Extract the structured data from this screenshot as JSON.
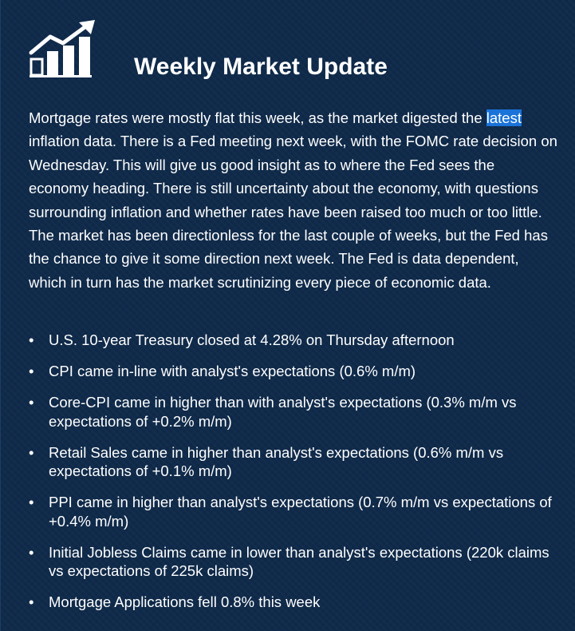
{
  "header": {
    "title": "Weekly Market Update",
    "logo_icon": "bar-chart-trend-up-icon"
  },
  "intro": {
    "text_before_highlight": "Mortgage rates were mostly flat this week, as the market digested the ",
    "highlighted_word": "latest",
    "text_after_highlight": " inflation data. There is a Fed meeting next week, with the FOMC rate decision on Wednesday. This will give us good insight as to where the Fed sees the economy heading. There is still uncertainty about the economy, with questions surrounding inflation and whether rates have been raised too much or too little. The market has been directionless for the last couple of weeks, but the Fed has the chance to give it some direction next week. The Fed is data dependent, which in turn has the market scrutinizing every piece of economic data."
  },
  "bullets": [
    "U.S. 10-year Treasury closed at 4.28% on Thursday afternoon",
    "CPI came in-line with analyst's expectations (0.6% m/m)",
    "Core-CPI came in higher than with analyst's expectations (0.3% m/m vs expectations of +0.2% m/m)",
    "Retail Sales came in higher than analyst's expectations (0.6% m/m vs expectations of +0.1% m/m)",
    "PPI came in higher than analyst's expectations (0.7% m/m vs expectations of +0.4% m/m)",
    "Initial Jobless Claims came in lower than analyst's expectations (220k claims vs expectations of 225k claims)",
    "Mortgage Applications fell 0.8% this week"
  ],
  "colors": {
    "background": "#0f2a4a",
    "text": "#ffffff",
    "highlight": "#1a73d9"
  }
}
